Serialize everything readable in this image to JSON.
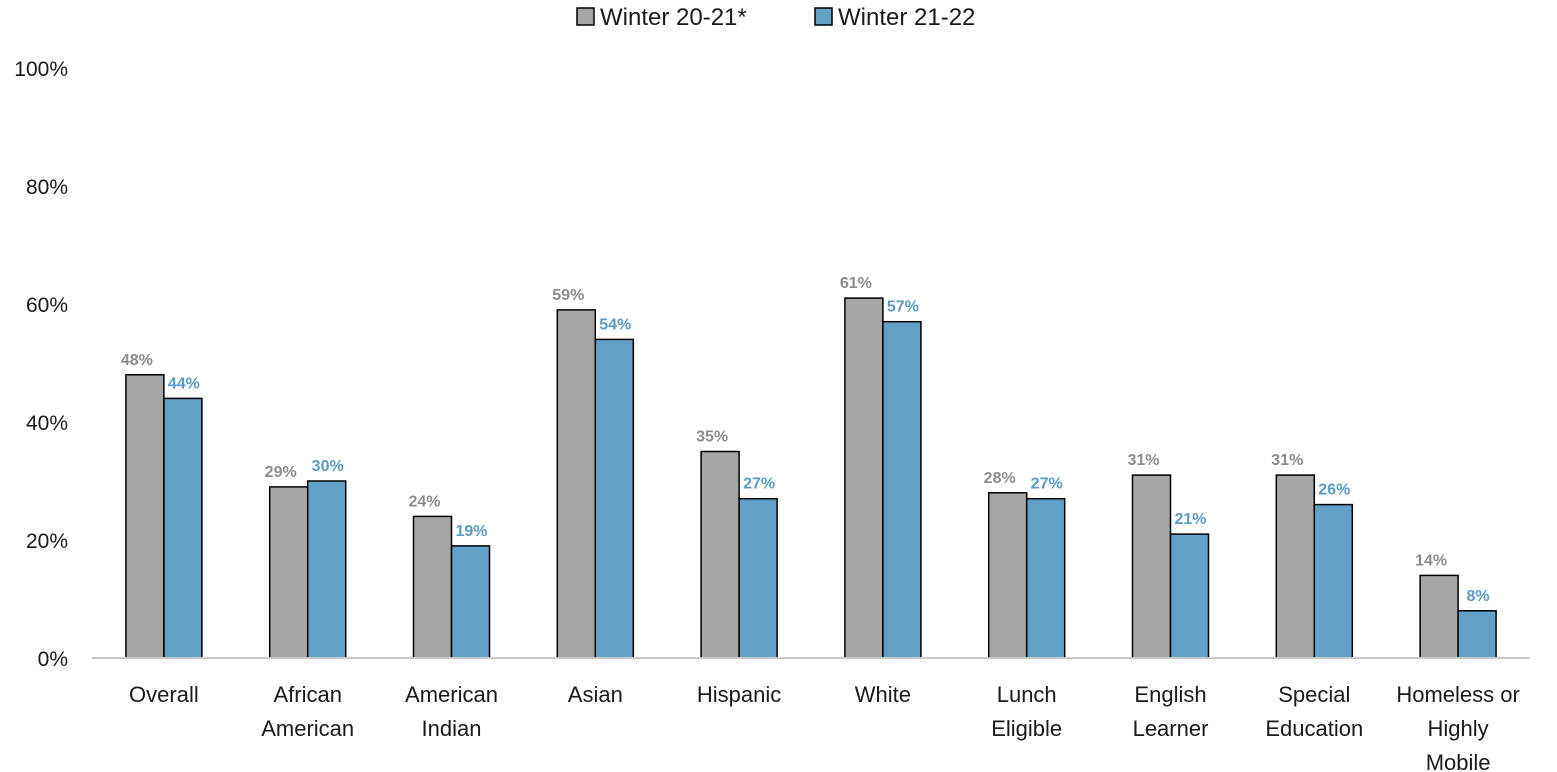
{
  "chart_data": {
    "type": "bar",
    "categories": [
      [
        "Overall"
      ],
      [
        "African",
        "American"
      ],
      [
        "American",
        "Indian"
      ],
      [
        "Asian"
      ],
      [
        "Hispanic"
      ],
      [
        "White"
      ],
      [
        "Lunch",
        "Eligible"
      ],
      [
        "English",
        "Learner"
      ],
      [
        "Special",
        "Education"
      ],
      [
        "Homeless or",
        "Highly",
        "Mobile"
      ]
    ],
    "series": [
      {
        "name": "Winter 20-21*",
        "color": "#a6a6a6",
        "label_color": "#8c8c8c",
        "values": [
          48,
          29,
          24,
          59,
          35,
          61,
          28,
          31,
          31,
          14
        ]
      },
      {
        "name": "Winter 21-22",
        "color": "#62a0c8",
        "label_color": "#5b9bc4",
        "values": [
          44,
          30,
          19,
          54,
          27,
          57,
          27,
          21,
          26,
          8
        ]
      }
    ],
    "ylim": [
      0,
      100
    ],
    "yticks": [
      0,
      20,
      40,
      60,
      80,
      100
    ],
    "ytick_labels": [
      "0%",
      "20%",
      "40%",
      "60%",
      "80%",
      "100%"
    ],
    "value_suffix": "%",
    "title": "",
    "xlabel": "",
    "ylabel": "",
    "legend_position": "top-center",
    "grid": false
  }
}
